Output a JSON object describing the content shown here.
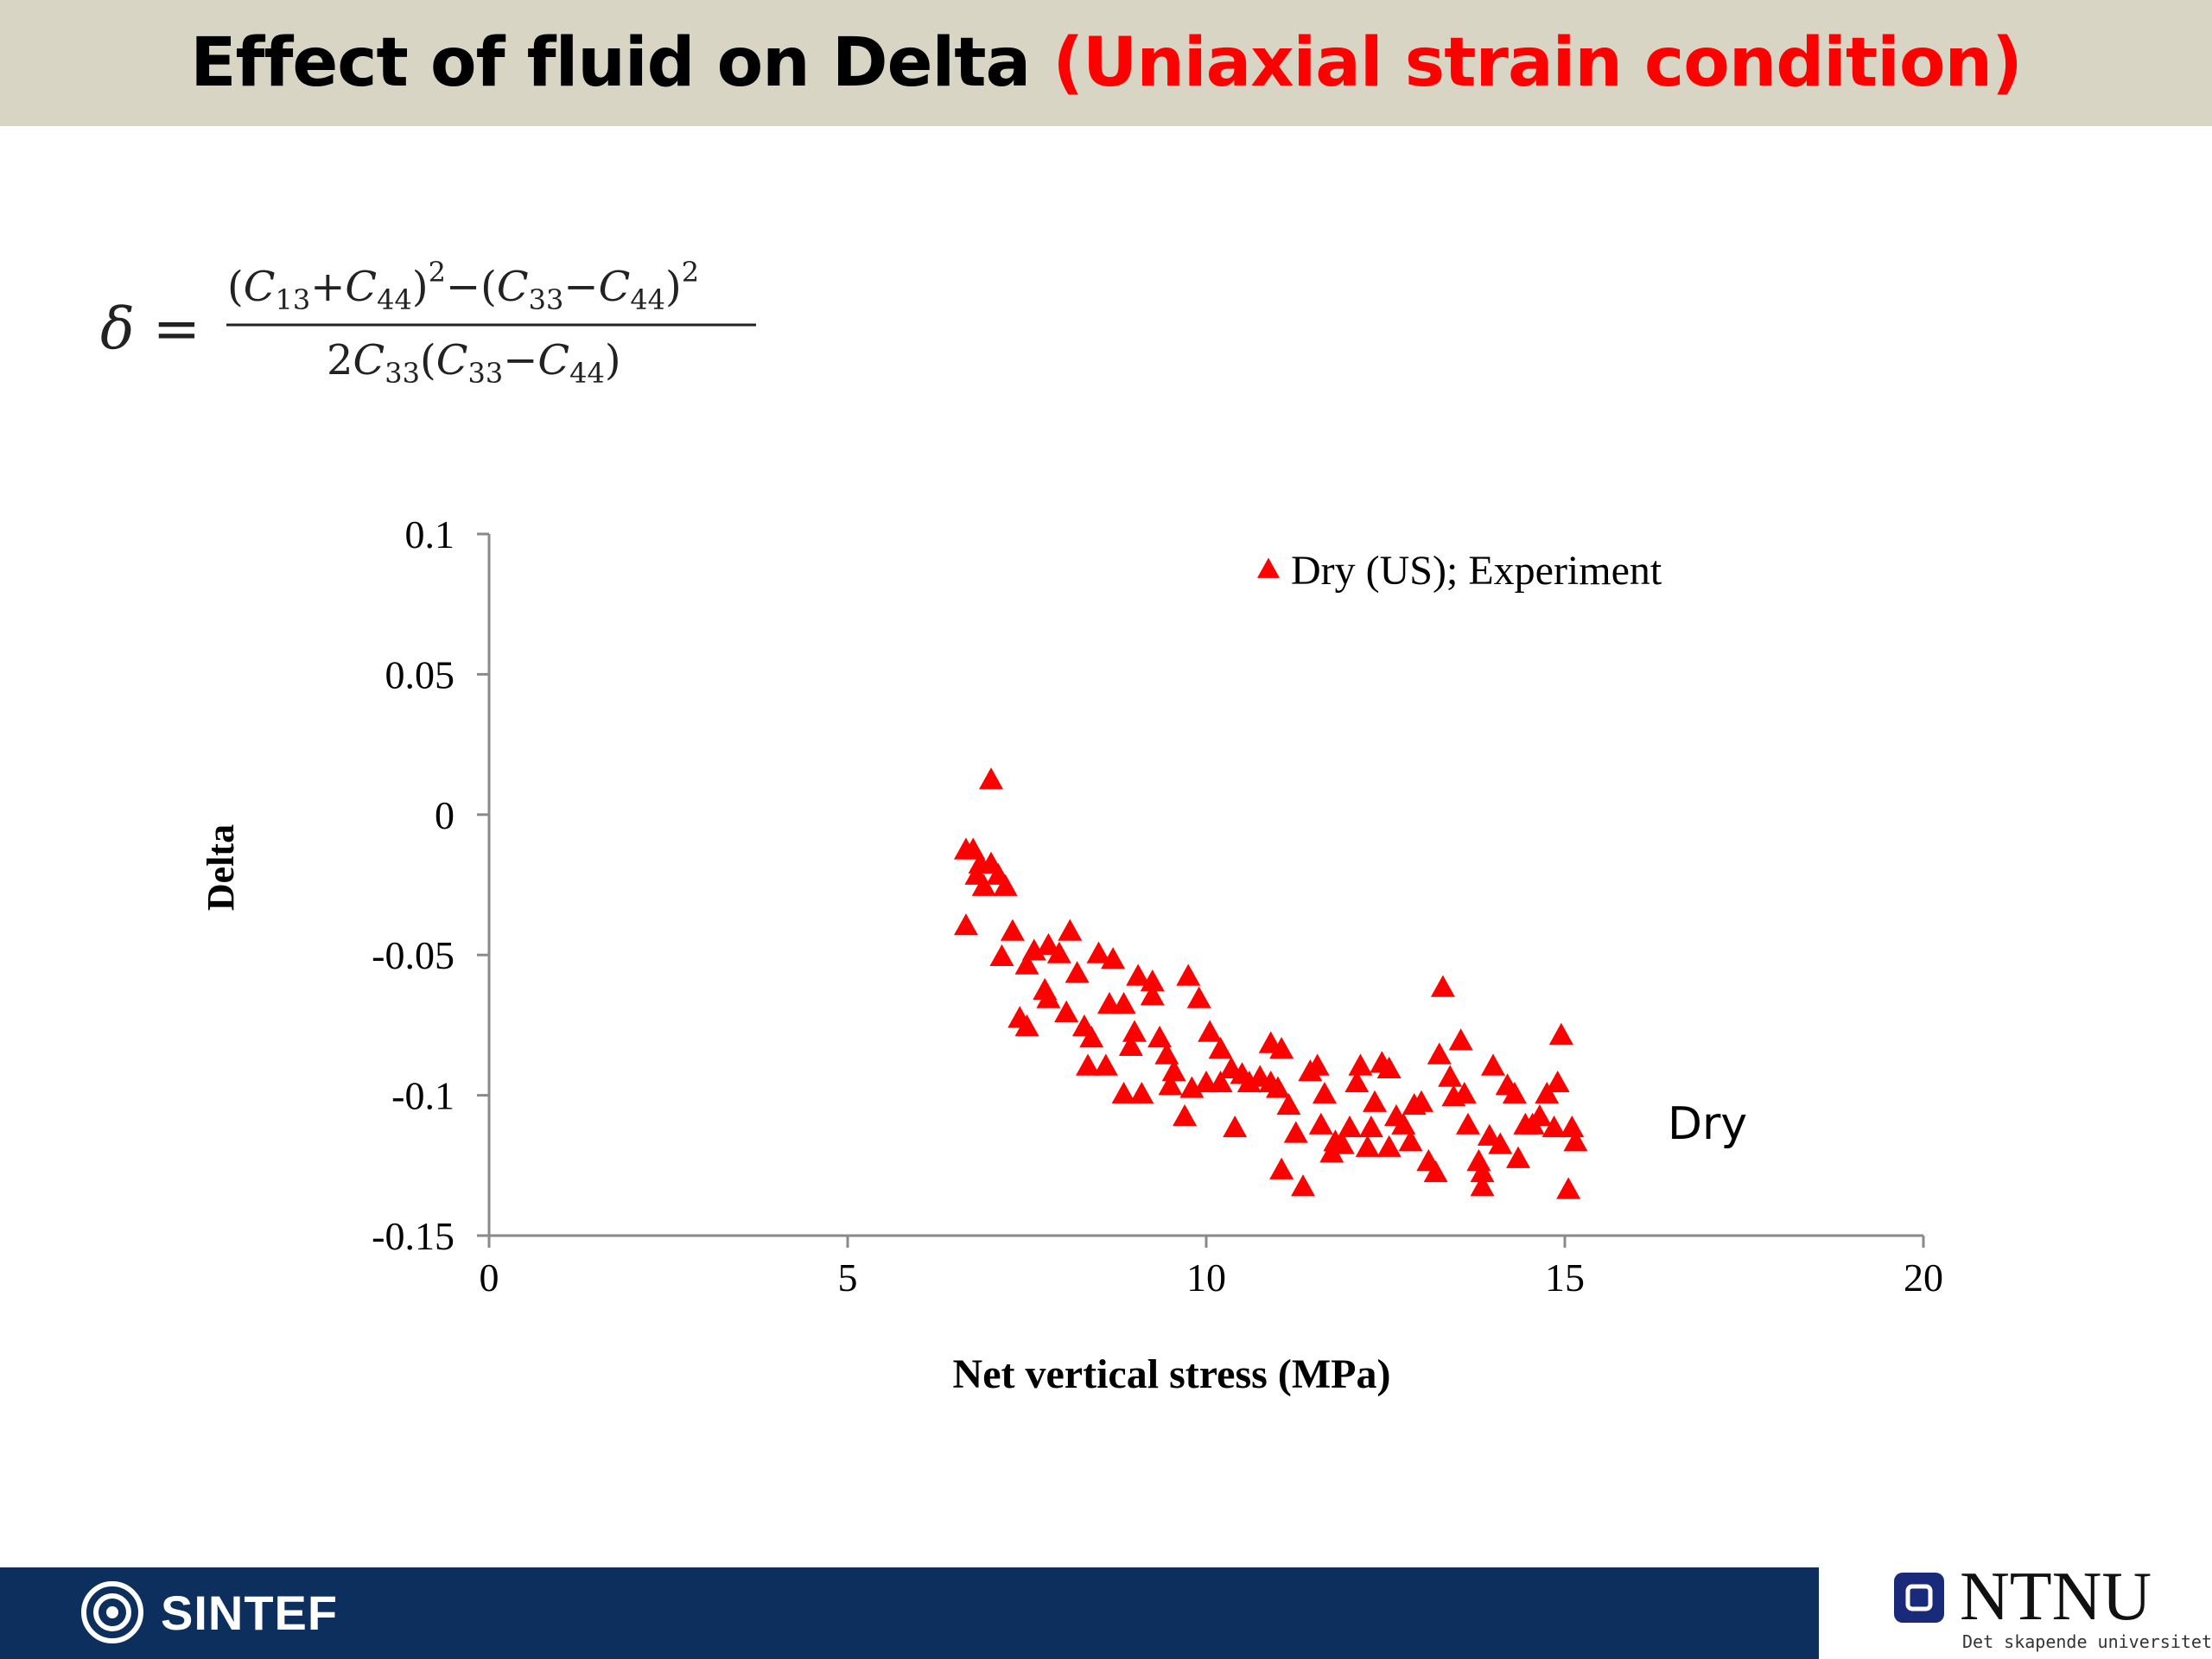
{
  "header": {
    "title_main": "Effect of fluid on Delta ",
    "title_accent": "(Uniaxial strain condition)"
  },
  "formula": {
    "lhs": "δ =",
    "numerator_parts": [
      "(",
      "C",
      "13",
      "+",
      "C",
      "44",
      ")",
      "2",
      "−",
      "(",
      "C",
      "33",
      "−",
      "C",
      "44",
      ")",
      "2"
    ],
    "denominator_parts": [
      "2",
      "C",
      "33",
      "(",
      "C",
      "33",
      "−",
      "C",
      "44",
      ")"
    ]
  },
  "chart_data": {
    "type": "scatter",
    "title": "",
    "xlabel": "Net vertical stress (MPa)",
    "ylabel": "Delta",
    "xlim": [
      0,
      20
    ],
    "ylim": [
      -0.15,
      0.1
    ],
    "x_ticks": [
      0,
      5,
      10,
      15,
      20
    ],
    "y_ticks": [
      0.1,
      0.05,
      0,
      -0.05,
      -0.1,
      -0.15
    ],
    "y_tick_labels": [
      "0.1",
      "0.05",
      "0",
      "-0.05",
      "-0.1",
      "-0.15"
    ],
    "grid": false,
    "legend_position": "top-right",
    "annotation": "Dry",
    "series": [
      {
        "name": "Dry (US); Experiment",
        "color": "#ff0000",
        "marker": "triangle",
        "points": [
          [
            7.0,
            0.012
          ],
          [
            6.65,
            -0.013
          ],
          [
            6.75,
            -0.013
          ],
          [
            6.85,
            -0.018
          ],
          [
            6.8,
            -0.022
          ],
          [
            7.0,
            -0.018
          ],
          [
            6.9,
            -0.026
          ],
          [
            7.1,
            -0.022
          ],
          [
            7.2,
            -0.026
          ],
          [
            6.65,
            -0.04
          ],
          [
            7.3,
            -0.042
          ],
          [
            7.15,
            -0.051
          ],
          [
            7.5,
            -0.054
          ],
          [
            7.6,
            -0.049
          ],
          [
            7.8,
            -0.047
          ],
          [
            7.95,
            -0.05
          ],
          [
            8.1,
            -0.042
          ],
          [
            8.2,
            -0.057
          ],
          [
            7.4,
            -0.073
          ],
          [
            7.5,
            -0.076
          ],
          [
            7.75,
            -0.063
          ],
          [
            7.8,
            -0.066
          ],
          [
            8.05,
            -0.071
          ],
          [
            8.3,
            -0.076
          ],
          [
            8.4,
            -0.08
          ],
          [
            8.5,
            -0.05
          ],
          [
            8.7,
            -0.052
          ],
          [
            8.65,
            -0.068
          ],
          [
            8.85,
            -0.068
          ],
          [
            8.35,
            -0.09
          ],
          [
            8.6,
            -0.09
          ],
          [
            9.0,
            -0.078
          ],
          [
            8.95,
            -0.083
          ],
          [
            8.85,
            -0.1
          ],
          [
            9.1,
            -0.1
          ],
          [
            9.05,
            -0.058
          ],
          [
            9.25,
            -0.06
          ],
          [
            9.25,
            -0.065
          ],
          [
            9.35,
            -0.08
          ],
          [
            9.45,
            -0.086
          ],
          [
            9.55,
            -0.092
          ],
          [
            9.5,
            -0.097
          ],
          [
            9.75,
            -0.058
          ],
          [
            9.9,
            -0.066
          ],
          [
            9.8,
            -0.098
          ],
          [
            10.0,
            -0.096
          ],
          [
            9.7,
            -0.108
          ],
          [
            10.05,
            -0.078
          ],
          [
            10.2,
            -0.084
          ],
          [
            10.2,
            -0.096
          ],
          [
            10.35,
            -0.091
          ],
          [
            10.5,
            -0.093
          ],
          [
            10.4,
            -0.112
          ],
          [
            10.6,
            -0.096
          ],
          [
            10.75,
            -0.094
          ],
          [
            10.9,
            -0.096
          ],
          [
            10.9,
            -0.082
          ],
          [
            11.05,
            -0.084
          ],
          [
            11.0,
            -0.098
          ],
          [
            11.15,
            -0.104
          ],
          [
            11.05,
            -0.127
          ],
          [
            11.25,
            -0.114
          ],
          [
            11.35,
            -0.133
          ],
          [
            11.45,
            -0.092
          ],
          [
            11.55,
            -0.09
          ],
          [
            11.6,
            -0.111
          ],
          [
            11.65,
            -0.1
          ],
          [
            11.75,
            -0.121
          ],
          [
            11.8,
            -0.117
          ],
          [
            11.9,
            -0.118
          ],
          [
            12.0,
            -0.112
          ],
          [
            12.1,
            -0.096
          ],
          [
            12.15,
            -0.09
          ],
          [
            12.25,
            -0.119
          ],
          [
            12.3,
            -0.112
          ],
          [
            12.35,
            -0.103
          ],
          [
            12.45,
            -0.089
          ],
          [
            12.55,
            -0.091
          ],
          [
            12.55,
            -0.119
          ],
          [
            12.65,
            -0.108
          ],
          [
            12.75,
            -0.111
          ],
          [
            12.85,
            -0.117
          ],
          [
            12.9,
            -0.104
          ],
          [
            13.0,
            -0.103
          ],
          [
            13.1,
            -0.124
          ],
          [
            13.2,
            -0.128
          ],
          [
            13.3,
            -0.062
          ],
          [
            13.25,
            -0.086
          ],
          [
            13.4,
            -0.094
          ],
          [
            13.45,
            -0.101
          ],
          [
            13.55,
            -0.081
          ],
          [
            13.6,
            -0.1
          ],
          [
            13.65,
            -0.111
          ],
          [
            13.8,
            -0.124
          ],
          [
            13.85,
            -0.128
          ],
          [
            13.85,
            -0.133
          ],
          [
            13.95,
            -0.115
          ],
          [
            14.0,
            -0.09
          ],
          [
            14.1,
            -0.118
          ],
          [
            14.2,
            -0.097
          ],
          [
            14.3,
            -0.1
          ],
          [
            14.35,
            -0.123
          ],
          [
            14.45,
            -0.111
          ],
          [
            14.55,
            -0.111
          ],
          [
            14.65,
            -0.108
          ],
          [
            14.75,
            -0.1
          ],
          [
            14.85,
            -0.112
          ],
          [
            14.9,
            -0.096
          ],
          [
            14.95,
            -0.079
          ],
          [
            15.05,
            -0.134
          ],
          [
            15.1,
            -0.112
          ],
          [
            15.15,
            -0.117
          ]
        ]
      }
    ]
  },
  "footer": {
    "left_logo_text": "SINTEF",
    "right_logo_text": "NTNU",
    "right_logo_tagline": "Det skapende universitet",
    "bar_color": "#0d2f5e"
  }
}
